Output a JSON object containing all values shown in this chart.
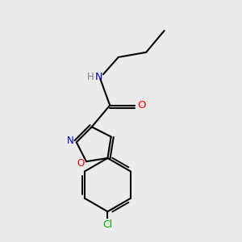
{
  "background_color": "#ebebeb",
  "bond_color": "#000000",
  "atom_colors": {
    "N": "#0000cd",
    "O_carbonyl": "#ff0000",
    "O_ring": "#ff0000",
    "N_ring": "#0000cd",
    "Cl": "#00aa00",
    "H": "#7f7f7f",
    "C": "#000000"
  },
  "figsize": [
    3.0,
    3.0
  ],
  "dpi": 100
}
